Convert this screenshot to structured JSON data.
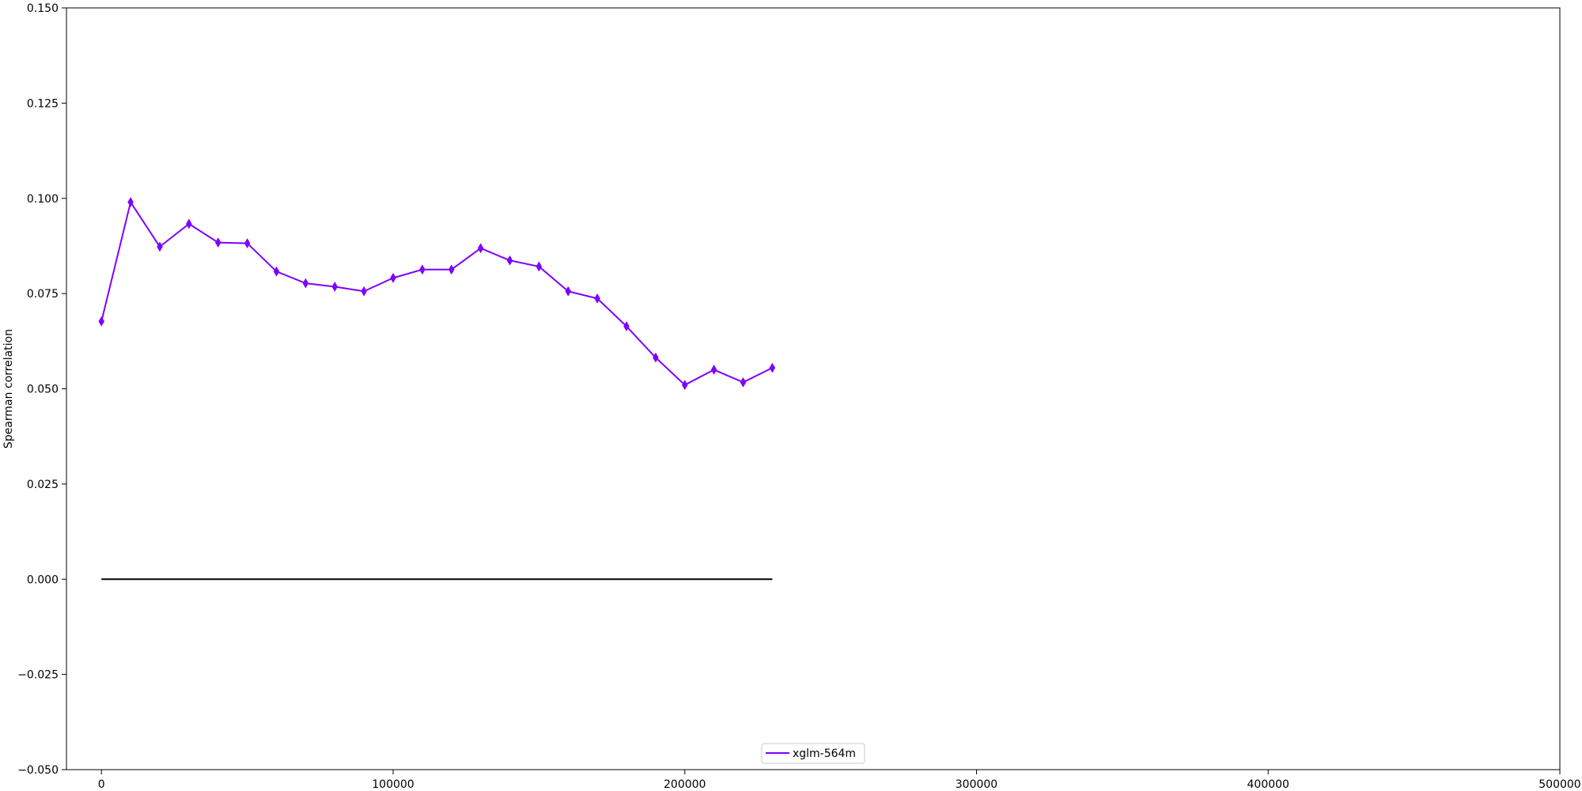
{
  "chart_data": {
    "type": "line",
    "title": "",
    "xlabel": "",
    "ylabel": "Spearman correlation",
    "xlim": [
      -12000,
      500000
    ],
    "ylim": [
      -0.05,
      0.15
    ],
    "xticks": [
      0,
      100000,
      200000,
      300000,
      400000,
      500000
    ],
    "xtick_labels": [
      "0",
      "100000",
      "200000",
      "300000",
      "400000",
      "500000"
    ],
    "yticks": [
      -0.05,
      -0.025,
      0.0,
      0.025,
      0.05,
      0.075,
      0.1,
      0.125,
      0.15
    ],
    "ytick_labels": [
      "−0.050",
      "−0.025",
      "0.000",
      "0.025",
      "0.050",
      "0.075",
      "0.100",
      "0.125",
      "0.150"
    ],
    "grid": false,
    "legend_position": "bottom-center",
    "series": [
      {
        "name": "xglm-564m",
        "color": "#7f00ff",
        "marker": "thin-diamond",
        "x": [
          0,
          10000,
          20000,
          30000,
          40000,
          50000,
          60000,
          70000,
          80000,
          90000,
          100000,
          110000,
          120000,
          130000,
          140000,
          150000,
          160000,
          170000,
          180000,
          190000,
          200000,
          210000,
          220000,
          230000
        ],
        "values": [
          0.0677,
          0.099,
          0.0873,
          0.0933,
          0.0884,
          0.0882,
          0.0808,
          0.0777,
          0.0768,
          0.0756,
          0.0791,
          0.0813,
          0.0813,
          0.0869,
          0.0837,
          0.0821,
          0.0756,
          0.0737,
          0.0664,
          0.0582,
          0.051,
          0.055,
          0.0517,
          0.0555
        ]
      }
    ],
    "reference_line": {
      "name": "zero-baseline",
      "color": "#000000",
      "y": 0.0,
      "x_start": 0,
      "x_end": 230000
    }
  }
}
